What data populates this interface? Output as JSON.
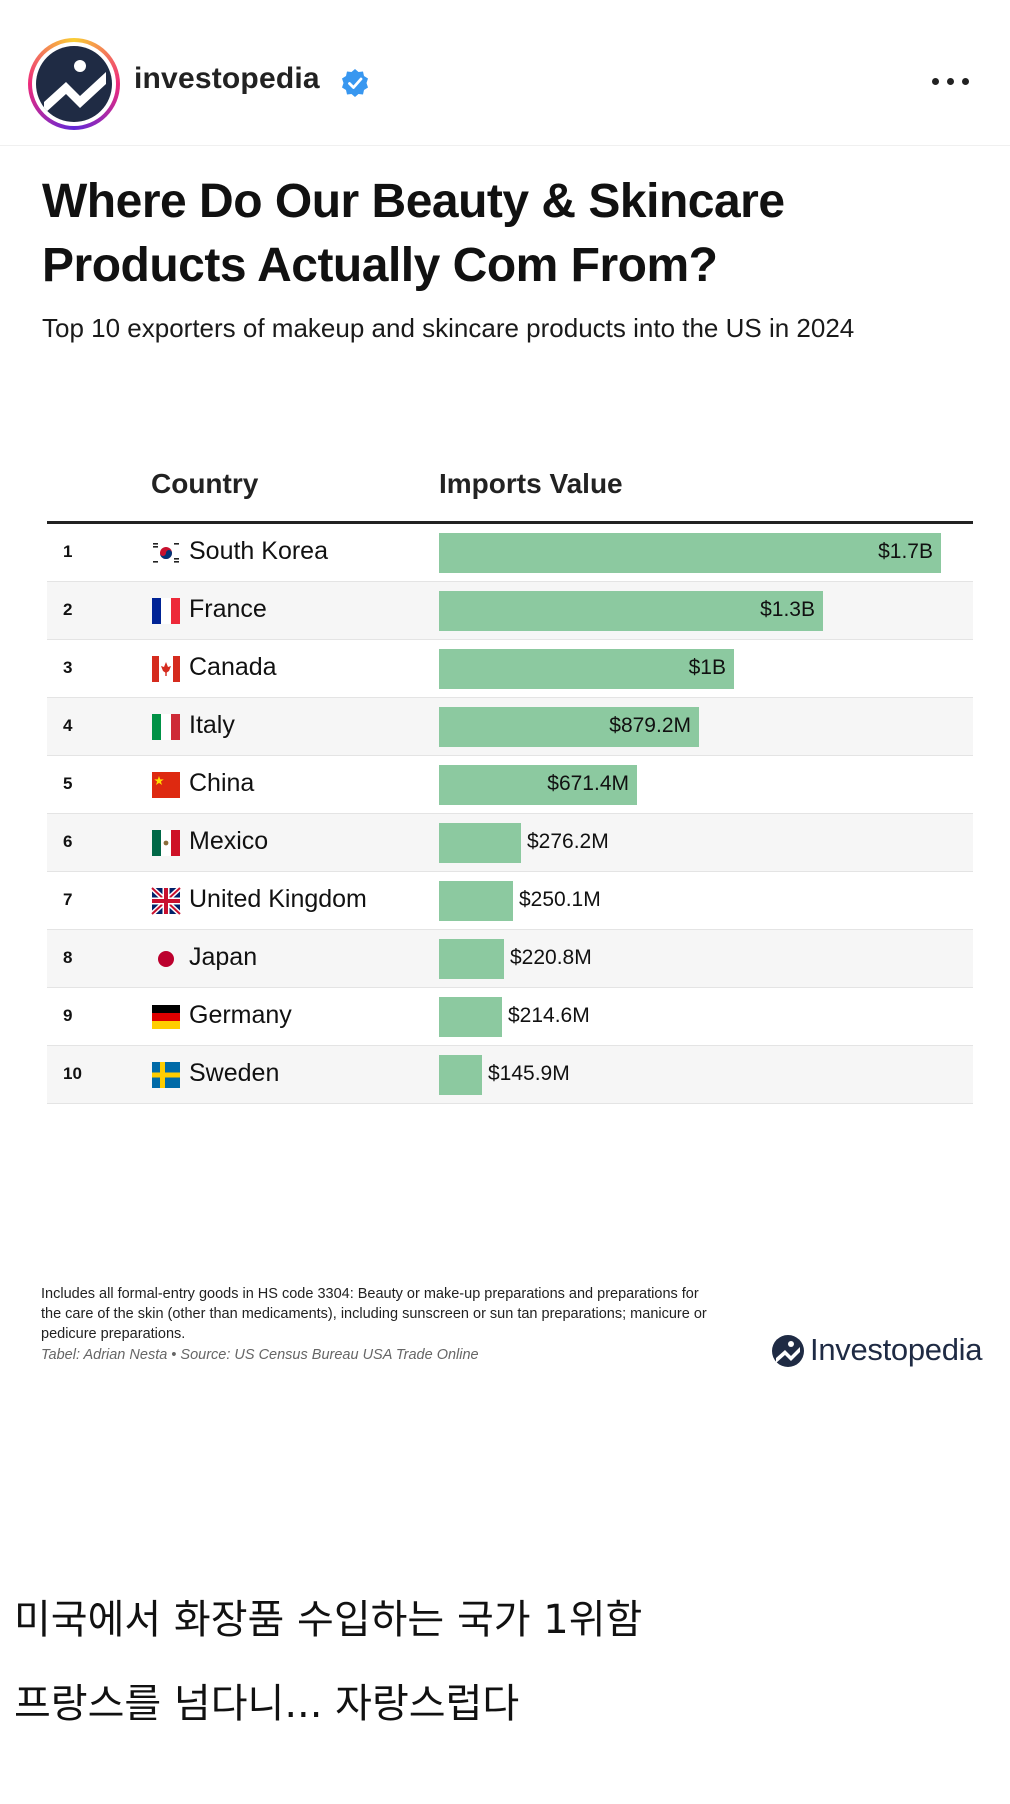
{
  "header": {
    "username": "investopedia",
    "verified_icon": "verified-badge-icon",
    "more_icon": "more-options-icon",
    "colors": {
      "avatar_bg": "#1f2b44",
      "verified": "#3897f0"
    }
  },
  "graphic": {
    "title_line1": "Where Do Our Beauty & Skincare",
    "title_line2": "Products Actually Com From?",
    "subtitle": "Top 10 exporters of makeup and skincare products into the US in 2024",
    "footnote": "Includes all formal-entry goods in HS code 3304: Beauty or make-up preparations and preparations for the care of the skin (other than medicaments), including sunscreen or sun tan preparations; manicure or pedicure preparations.",
    "source": "Tabel: Adrian Nesta • Source: US Census Bureau USA Trade Online",
    "brand": "Investopedia",
    "bar_color": "#8cc9a0"
  },
  "chart_data": {
    "type": "table",
    "columns": [
      "Country",
      "Imports Value"
    ],
    "rows": [
      {
        "rank": "1",
        "country": "South Korea",
        "flag": "south-korea-flag-icon",
        "value": 1700,
        "label": "$1.7B"
      },
      {
        "rank": "2",
        "country": "France",
        "flag": "france-flag-icon",
        "value": 1300,
        "label": "$1.3B"
      },
      {
        "rank": "3",
        "country": "Canada",
        "flag": "canada-flag-icon",
        "value": 1000,
        "label": "$1B"
      },
      {
        "rank": "4",
        "country": "Italy",
        "flag": "italy-flag-icon",
        "value": 879.2,
        "label": "$879.2M"
      },
      {
        "rank": "5",
        "country": "China",
        "flag": "china-flag-icon",
        "value": 671.4,
        "label": "$671.4M"
      },
      {
        "rank": "6",
        "country": "Mexico",
        "flag": "mexico-flag-icon",
        "value": 276.2,
        "label": "$276.2M"
      },
      {
        "rank": "7",
        "country": "United Kingdom",
        "flag": "uk-flag-icon",
        "value": 250.1,
        "label": "$250.1M"
      },
      {
        "rank": "8",
        "country": "Japan",
        "flag": "japan-flag-icon",
        "value": 220.8,
        "label": "$220.8M"
      },
      {
        "rank": "9",
        "country": "Germany",
        "flag": "germany-flag-icon",
        "value": 214.6,
        "label": "$214.6M"
      },
      {
        "rank": "10",
        "country": "Sweden",
        "flag": "sweden-flag-icon",
        "value": 145.9,
        "label": "$145.9M"
      }
    ],
    "value_unit": "$M"
  },
  "caption": {
    "line1": "미국에서 화장품 수입하는 국가 1위함",
    "line2": "프랑스를 넘다니... 자랑스럽다"
  }
}
